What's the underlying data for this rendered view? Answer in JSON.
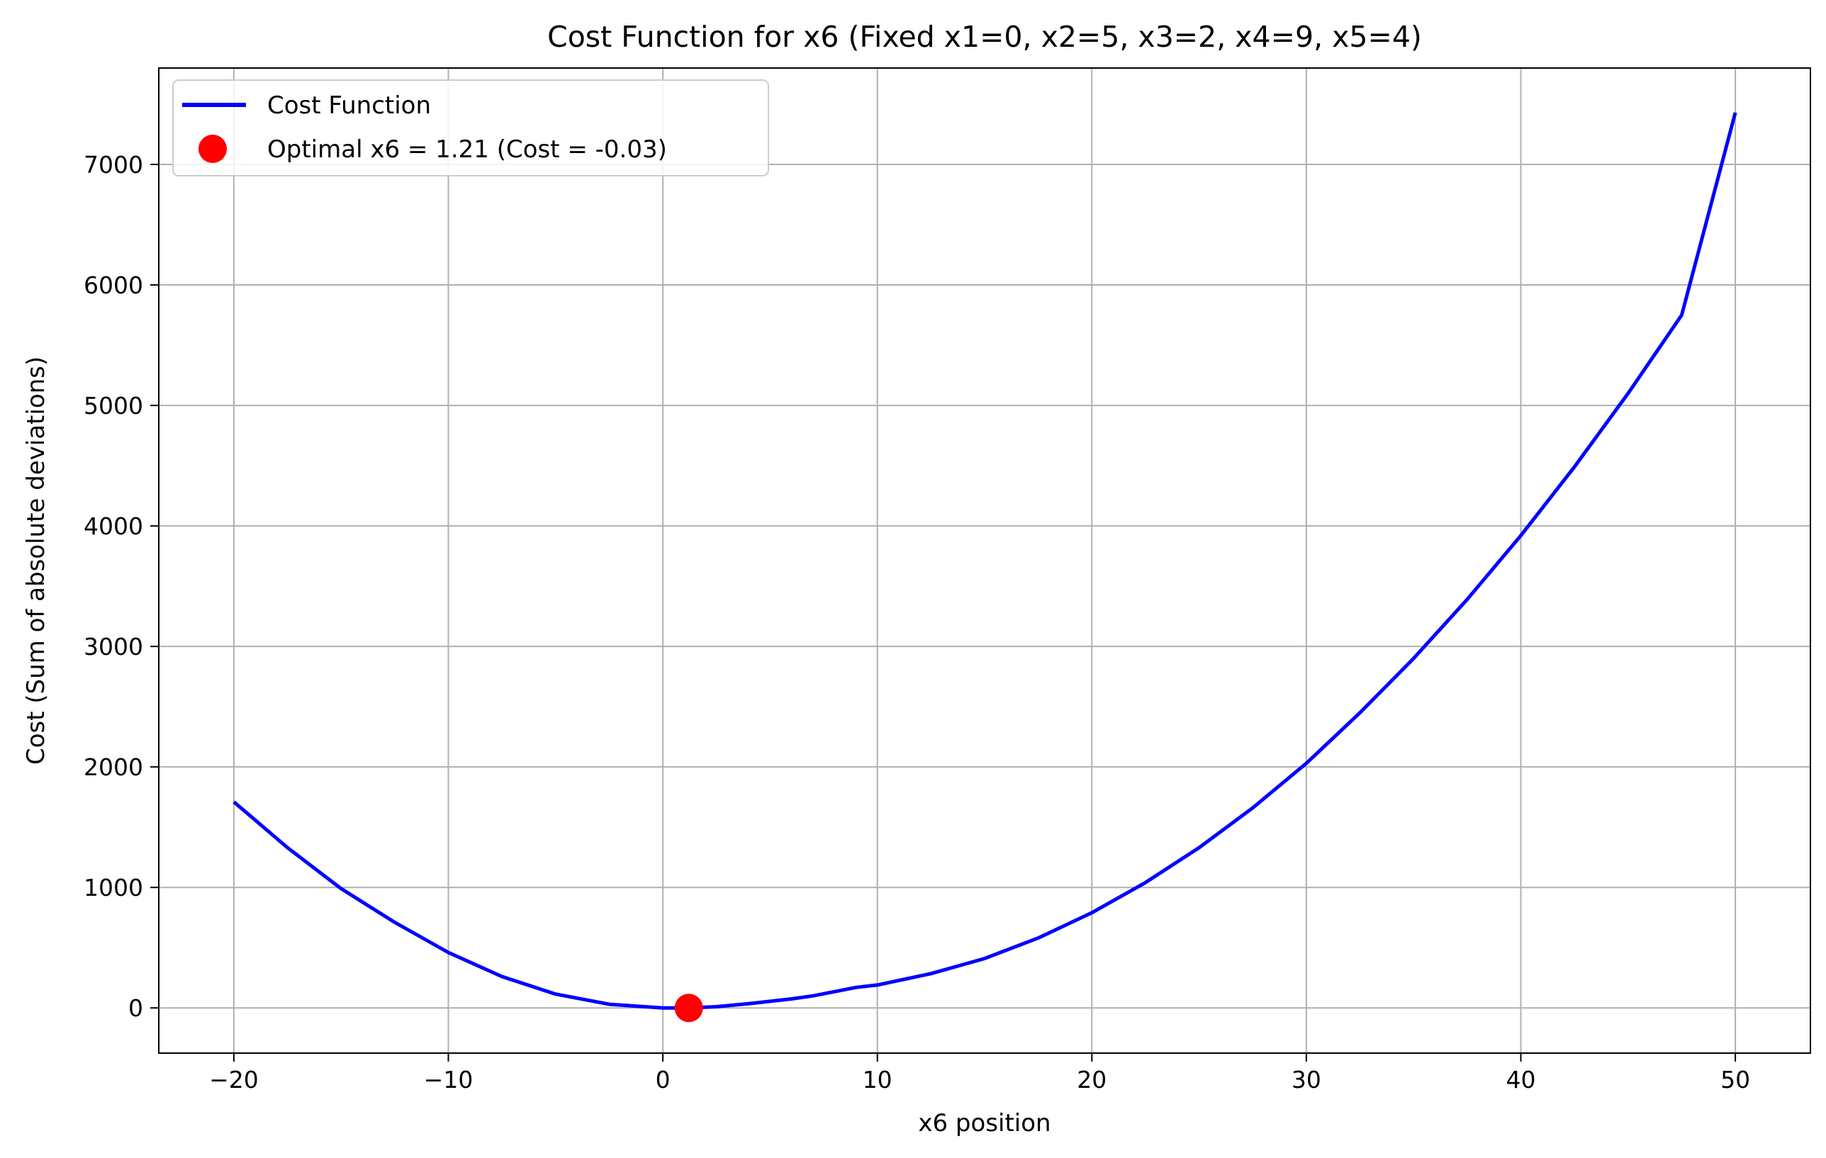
{
  "chart_data": {
    "type": "line",
    "title": "Cost Function for x6 (Fixed x1=0, x2=5, x3=2, x4=9, x5=4)",
    "xlabel": "x6 position",
    "ylabel": "Cost (Sum of absolute deviations)",
    "xlim": [
      -23.5,
      53.5
    ],
    "ylim": [
      -375,
      7800
    ],
    "xticks": [
      -20,
      -10,
      0,
      10,
      20,
      30,
      40,
      50
    ],
    "xtick_labels": [
      "−20",
      "−10",
      "0",
      "10",
      "20",
      "30",
      "40",
      "50"
    ],
    "yticks": [
      0,
      1000,
      2000,
      3000,
      4000,
      5000,
      6000,
      7000
    ],
    "ytick_labels": [
      "0",
      "1000",
      "2000",
      "3000",
      "4000",
      "5000",
      "6000",
      "7000"
    ],
    "grid": true,
    "legend_position": "top-left",
    "series": [
      {
        "name": "Cost Function",
        "kind": "line",
        "color": "#0000ff",
        "x": [
          -20,
          -17.5,
          -15,
          -12.5,
          -10,
          -7.5,
          -5,
          -2.5,
          0,
          1.21,
          2.5,
          4,
          5,
          6,
          7,
          8,
          9,
          10,
          12.5,
          15,
          17.5,
          20,
          22.5,
          25,
          27.5,
          30,
          32.5,
          35,
          37.5,
          40,
          42.5,
          45,
          47.5,
          50
        ],
        "values": [
          1710,
          1330,
          990,
          710,
          460,
          260,
          115,
          30,
          0,
          -0.03,
          10,
          35,
          55,
          75,
          100,
          135,
          170,
          190,
          285,
          410,
          580,
          790,
          1040,
          1330,
          1660,
          2030,
          2450,
          2900,
          3390,
          3920,
          4490,
          5100,
          5750,
          7430
        ]
      },
      {
        "name": "Optimal x6 = 1.21 (Cost = -0.03)",
        "kind": "scatter",
        "color": "#ff0000",
        "x": [
          1.21
        ],
        "values": [
          -0.03
        ]
      }
    ]
  }
}
